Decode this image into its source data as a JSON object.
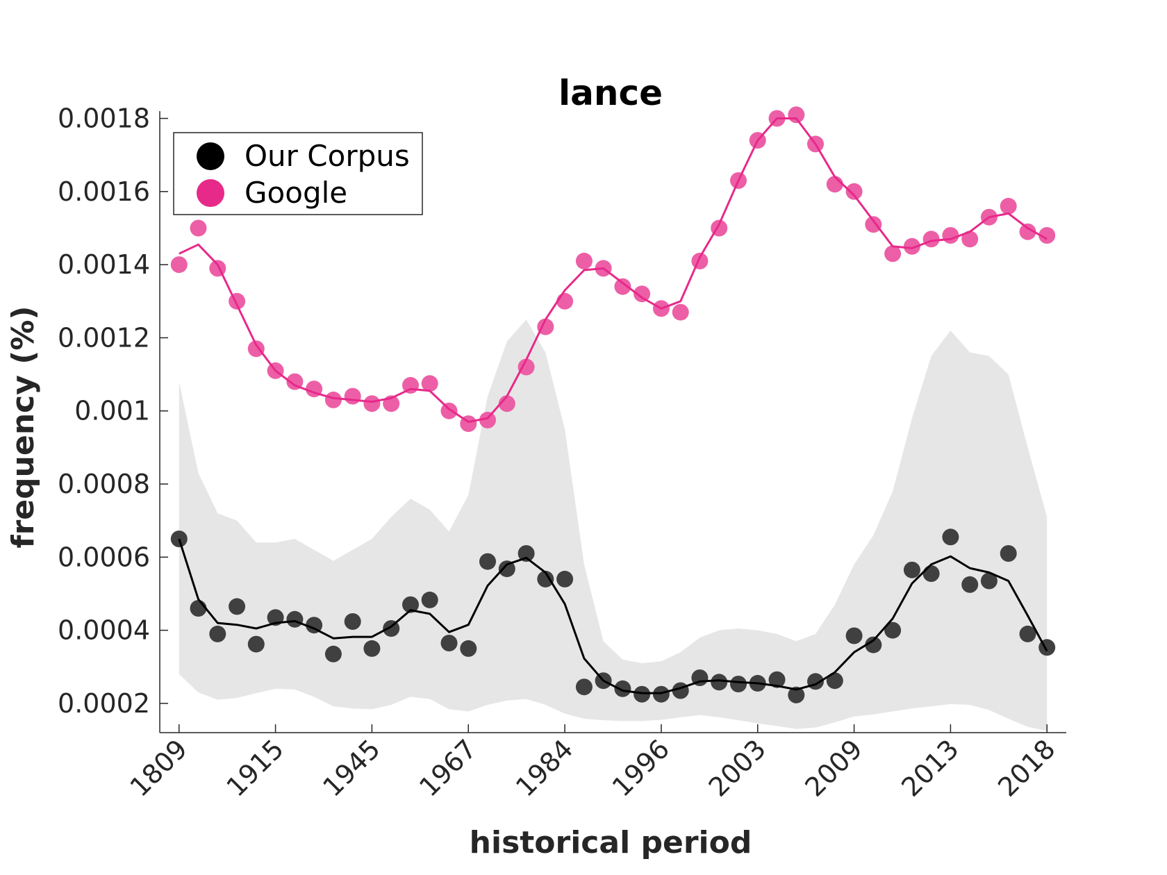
{
  "chart_data": {
    "type": "line",
    "title": "lance",
    "xlabel": "historical period",
    "ylabel": "frequency (%)",
    "x_index": [
      1,
      2,
      3,
      4,
      5,
      6,
      7,
      8,
      9,
      10,
      11,
      12,
      13,
      14,
      15,
      16,
      17,
      18,
      19,
      20,
      21,
      22,
      23,
      24,
      25,
      26,
      27,
      28,
      29,
      30,
      31,
      32,
      33,
      34,
      35,
      36,
      37,
      38,
      39,
      40,
      41,
      42,
      43,
      44,
      45,
      46
    ],
    "x_tick_positions": [
      1,
      6,
      11,
      16,
      21,
      26,
      31,
      36,
      41,
      46
    ],
    "x_tick_labels": [
      "1809",
      "1915",
      "1945",
      "1967",
      "1984",
      "1996",
      "2003",
      "2009",
      "2013",
      "2018"
    ],
    "y_ticks": [
      0.0002,
      0.0004,
      0.0006,
      0.0008,
      0.001,
      0.0012,
      0.0014,
      0.0016,
      0.0018
    ],
    "y_tick_labels": [
      "0.0002",
      "0.0004",
      "0.0006",
      "0.0008",
      "0.001",
      "0.0012",
      "0.0014",
      "0.0016",
      "0.0018"
    ],
    "xlim": [
      0,
      47
    ],
    "ylim": [
      0.00012,
      0.00182
    ],
    "legend": {
      "placement": "top-left"
    },
    "series": [
      {
        "name": "Our Corpus",
        "color": "#000000",
        "marker_color": "#404040",
        "points": [
          0.00065,
          0.00046,
          0.00039,
          0.000465,
          0.000362,
          0.000435,
          0.00043,
          0.000414,
          0.000335,
          0.000424,
          0.00035,
          0.000405,
          0.00047,
          0.000483,
          0.000365,
          0.00035,
          0.000588,
          0.000568,
          0.00061,
          0.00054,
          0.00054,
          0.000245,
          0.000262,
          0.00024,
          0.000225,
          0.000225,
          0.000235,
          0.00027,
          0.000258,
          0.000253,
          0.000255,
          0.000265,
          0.000223,
          0.00026,
          0.000262,
          0.000385,
          0.00036,
          0.0004,
          0.000565,
          0.000555,
          0.000655,
          0.000525,
          0.000535,
          0.00061,
          0.00039,
          0.000353
        ],
        "smooth": [
          0.00065,
          0.000485,
          0.00042,
          0.000415,
          0.000405,
          0.00042,
          0.000425,
          0.000405,
          0.000378,
          0.000382,
          0.000382,
          0.00041,
          0.000455,
          0.000445,
          0.000395,
          0.000415,
          0.000522,
          0.00058,
          0.000598,
          0.000558,
          0.000472,
          0.000323,
          0.000262,
          0.000235,
          0.000228,
          0.000228,
          0.000242,
          0.00026,
          0.000263,
          0.000258,
          0.000255,
          0.000248,
          0.000238,
          0.000252,
          0.000285,
          0.00034,
          0.000372,
          0.000432,
          0.000528,
          0.00058,
          0.000602,
          0.00057,
          0.000558,
          0.000535,
          0.00044,
          0.000343
        ],
        "band_upper": [
          0.00108,
          0.00083,
          0.00072,
          0.0007,
          0.00064,
          0.00064,
          0.00065,
          0.00062,
          0.00059,
          0.00062,
          0.00065,
          0.00071,
          0.00076,
          0.00073,
          0.00067,
          0.00077,
          0.00104,
          0.00119,
          0.00125,
          0.00116,
          0.00095,
          0.00058,
          0.00037,
          0.00032,
          0.00031,
          0.000315,
          0.00034,
          0.00038,
          0.0004,
          0.000405,
          0.0004,
          0.00039,
          0.00037,
          0.00039,
          0.00047,
          0.00058,
          0.00066,
          0.00078,
          0.00098,
          0.00115,
          0.00122,
          0.00116,
          0.00115,
          0.0011,
          0.0009,
          0.00071
        ],
        "band_lower": [
          0.00028,
          0.00023,
          0.00021,
          0.000215,
          0.000228,
          0.00024,
          0.000238,
          0.000218,
          0.000192,
          0.000186,
          0.000184,
          0.000196,
          0.000218,
          0.000212,
          0.000184,
          0.000178,
          0.000196,
          0.000208,
          0.000212,
          0.000196,
          0.000172,
          0.000158,
          0.000154,
          0.000152,
          0.000152,
          0.000155,
          0.000162,
          0.000168,
          0.000162,
          0.000154,
          0.000145,
          0.000138,
          0.00013,
          0.000134,
          0.000148,
          0.000164,
          0.00017,
          0.000178,
          0.000186,
          0.000192,
          0.000198,
          0.000196,
          0.000182,
          0.000158,
          0.000136,
          0.000125
        ],
        "band_color": "#e6e6e6"
      },
      {
        "name": "Google",
        "color": "#e7298a",
        "marker_color": "#ec5fa6",
        "points": [
          0.0014,
          0.0015,
          0.00139,
          0.0013,
          0.00117,
          0.00111,
          0.00108,
          0.00106,
          0.00103,
          0.00104,
          0.00102,
          0.00102,
          0.00107,
          0.001075,
          0.001,
          0.000965,
          0.000975,
          0.00102,
          0.00112,
          0.00123,
          0.0013,
          0.00141,
          0.00139,
          0.00134,
          0.00132,
          0.00128,
          0.00127,
          0.00141,
          0.0015,
          0.00163,
          0.00174,
          0.0018,
          0.00181,
          0.00173,
          0.00162,
          0.0016,
          0.00151,
          0.00143,
          0.00145,
          0.00147,
          0.00148,
          0.00147,
          0.00153,
          0.00156,
          0.00149,
          0.00148
        ],
        "smooth": [
          0.00143,
          0.001455,
          0.0014,
          0.00129,
          0.00118,
          0.00111,
          0.00107,
          0.00105,
          0.001035,
          0.00103,
          0.001025,
          0.001035,
          0.00106,
          0.001055,
          0.001005,
          0.00097,
          0.00098,
          0.00104,
          0.00114,
          0.00125,
          0.00133,
          0.001385,
          0.00139,
          0.00135,
          0.00131,
          0.00128,
          0.0013,
          0.00142,
          0.00151,
          0.00163,
          0.00174,
          0.0018,
          0.0018,
          0.00173,
          0.00164,
          0.00159,
          0.00152,
          0.00145,
          0.001445,
          0.001465,
          0.00147,
          0.00149,
          0.00153,
          0.00154,
          0.0015,
          0.00147
        ]
      }
    ]
  }
}
